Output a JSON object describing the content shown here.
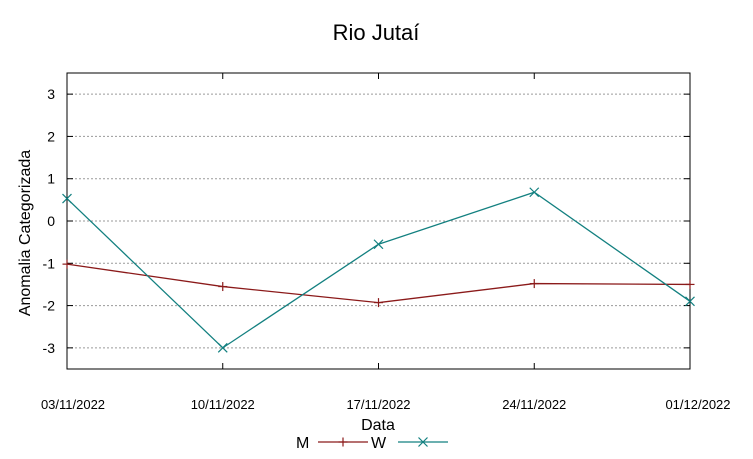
{
  "chart_data": {
    "type": "line",
    "title": "Rio Jutaí",
    "xlabel": "Data",
    "ylabel": "Anomalia Categorizada",
    "categories": [
      "03/11/2022",
      "10/11/2022",
      "17/11/2022",
      "24/11/2022",
      "01/12/2022"
    ],
    "ylim": [
      -3.5,
      3.5
    ],
    "yticks": [
      -3,
      -2,
      -1,
      0,
      1,
      2,
      3
    ],
    "grid": true,
    "legend_position": "bottom",
    "series": [
      {
        "name": "M",
        "marker": "plus",
        "color": "#8b1a1a",
        "values": [
          -1.02,
          -1.55,
          -1.93,
          -1.48,
          -1.5
        ]
      },
      {
        "name": "W",
        "marker": "cross",
        "color": "#138080",
        "values": [
          0.53,
          -3.0,
          -0.55,
          0.68,
          -1.9
        ]
      }
    ]
  }
}
